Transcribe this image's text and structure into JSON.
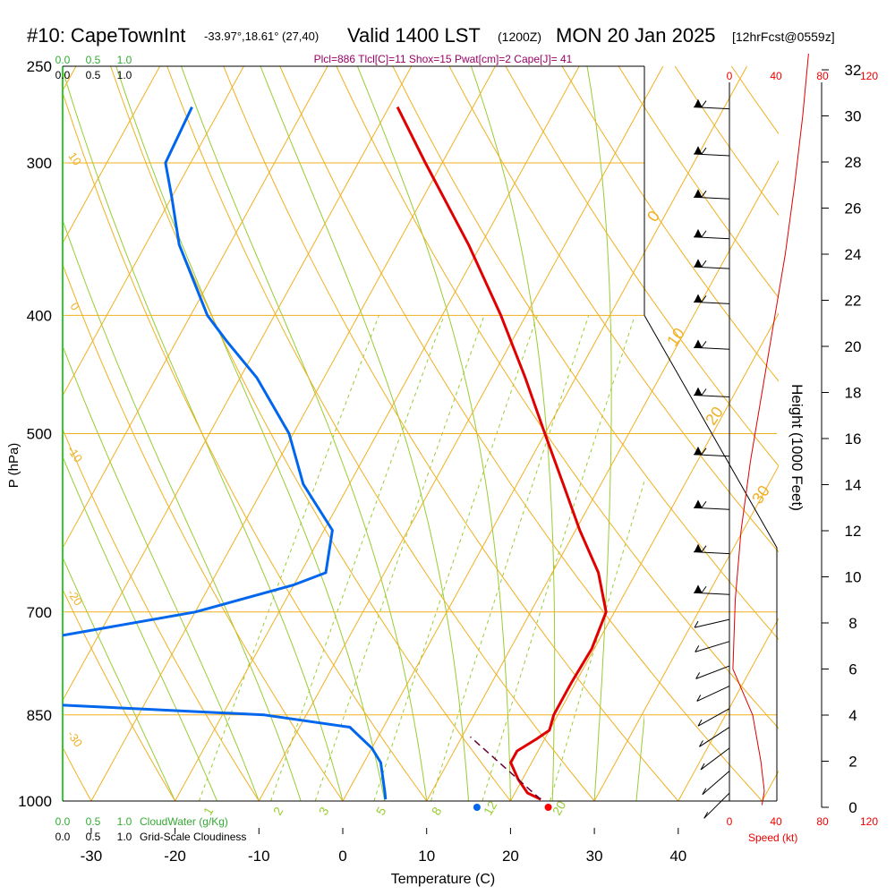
{
  "header": {
    "station": "#10: CapeTownInt",
    "coords": "-33.97°,18.61° (27,40)",
    "valid": "Valid 1400 LST",
    "zulu": "(1200Z)",
    "date": "MON 20 Jan 2025",
    "forecast": "[12hrFcst@0559z]"
  },
  "stats_line": "Plcl=886 Tlcl[C]=11 Shox=15 Pwat[cm]=2 Cape[J]= 41",
  "chart_data": {
    "type": "line",
    "chart_kind": "Skew-T log-P sounding",
    "xlabel": "Temperature (C)",
    "ylabel": "P (hPa)",
    "right_axis_label": "Height (1000 Feet)",
    "xlim": [
      -34,
      36
    ],
    "ylim": [
      1000,
      250
    ],
    "x_ticks": [
      -30,
      -20,
      -10,
      0,
      10,
      20,
      30,
      40
    ],
    "p_ticks": [
      250,
      300,
      400,
      500,
      700,
      850,
      1000
    ],
    "height_ticks": [
      0,
      2,
      4,
      6,
      8,
      10,
      12,
      14,
      16,
      18,
      20,
      22,
      24,
      26,
      28,
      30,
      32
    ],
    "isotherm_labels": [
      "-10",
      "0",
      "10",
      "20",
      "30"
    ],
    "dry_adiabat_labels": [
      "10",
      "0",
      "-10",
      "-20",
      "-30"
    ],
    "mixing_ratio_labels": [
      "1",
      "2",
      "3",
      "5",
      "8",
      "12",
      "20"
    ],
    "cloudwater_scale": {
      "label": "CloudWater (g/Kg)",
      "ticks": [
        "0.0",
        "0.5",
        "1.0"
      ]
    },
    "cloudiness_scale": {
      "label": "Grid-Scale Cloudiness",
      "ticks": [
        "0.0",
        "0.5",
        "1.0"
      ]
    },
    "speed_scale": {
      "label": "Speed (kt)",
      "ticks": [
        "0",
        "40",
        "80",
        "120"
      ]
    },
    "series": [
      {
        "name": "Temperature",
        "color": "#e00000",
        "points": [
          {
            "p": 997,
            "t": 23.5
          },
          {
            "p": 985,
            "t": 21.5
          },
          {
            "p": 960,
            "t": 19.5
          },
          {
            "p": 930,
            "t": 17.5
          },
          {
            "p": 910,
            "t": 17.5
          },
          {
            "p": 890,
            "t": 19.0
          },
          {
            "p": 875,
            "t": 20.0
          },
          {
            "p": 850,
            "t": 19.5
          },
          {
            "p": 800,
            "t": 19.5
          },
          {
            "p": 750,
            "t": 19.7
          },
          {
            "p": 700,
            "t": 19.0
          },
          {
            "p": 650,
            "t": 15.5
          },
          {
            "p": 600,
            "t": 10.5
          },
          {
            "p": 550,
            "t": 5.5
          },
          {
            "p": 500,
            "t": 0.0
          },
          {
            "p": 450,
            "t": -6.0
          },
          {
            "p": 400,
            "t": -13.0
          },
          {
            "p": 350,
            "t": -21.5
          },
          {
            "p": 300,
            "t": -32.0
          },
          {
            "p": 270,
            "t": -39.0
          }
        ]
      },
      {
        "name": "Dewpoint",
        "color": "#0066ee",
        "points": [
          {
            "p": 997,
            "t": 5.0
          },
          {
            "p": 985,
            "t": 4.5
          },
          {
            "p": 930,
            "t": 2.0
          },
          {
            "p": 905,
            "t": 0.0
          },
          {
            "p": 870,
            "t": -4.0
          },
          {
            "p": 850,
            "t": -15.0
          },
          {
            "p": 825,
            "t": -55.0
          },
          {
            "p": 810,
            "t": -52.0
          },
          {
            "p": 795,
            "t": -54.0
          },
          {
            "p": 770,
            "t": -51.0
          },
          {
            "p": 740,
            "t": -48.0
          },
          {
            "p": 700,
            "t": -30.0
          },
          {
            "p": 665,
            "t": -20.0
          },
          {
            "p": 650,
            "t": -17.0
          },
          {
            "p": 600,
            "t": -19.0
          },
          {
            "p": 550,
            "t": -25.5
          },
          {
            "p": 500,
            "t": -30.5
          },
          {
            "p": 450,
            "t": -38.0
          },
          {
            "p": 420,
            "t": -44.0
          },
          {
            "p": 400,
            "t": -48.0
          },
          {
            "p": 350,
            "t": -56.0
          },
          {
            "p": 320,
            "t": -60.0
          },
          {
            "p": 300,
            "t": -63.0
          },
          {
            "p": 270,
            "t": -63.5
          }
        ]
      },
      {
        "name": "Parcel",
        "color": "#660033",
        "points": [
          {
            "p": 997,
            "t": 23.5
          },
          {
            "p": 886,
            "t": 11.0
          }
        ]
      }
    ],
    "surface_markers": [
      {
        "name": "Surface temperature",
        "x": 24.5,
        "color": "#ff0000"
      },
      {
        "name": "Surface dewpoint",
        "x": 16.0,
        "color": "#0066ee"
      }
    ],
    "wind_speed_profile": [
      {
        "height_kft": 0.1,
        "speed_kt": 28
      },
      {
        "height_kft": 0.7,
        "speed_kt": 30
      },
      {
        "height_kft": 2.0,
        "speed_kt": 27
      },
      {
        "height_kft": 4.0,
        "speed_kt": 20
      },
      {
        "height_kft": 6.0,
        "speed_kt": 3
      },
      {
        "height_kft": 9.0,
        "speed_kt": 5
      },
      {
        "height_kft": 12.0,
        "speed_kt": 10
      },
      {
        "height_kft": 15.0,
        "speed_kt": 18
      },
      {
        "height_kft": 18.0,
        "speed_kt": 28
      },
      {
        "height_kft": 21.0,
        "speed_kt": 38
      },
      {
        "height_kft": 24.0,
        "speed_kt": 48
      },
      {
        "height_kft": 27.0,
        "speed_kt": 56
      },
      {
        "height_kft": 30.0,
        "speed_kt": 63
      },
      {
        "height_kft": 32.7,
        "speed_kt": 68
      }
    ],
    "wind_barbs_p": [
      270,
      295,
      320,
      345,
      365,
      390,
      425,
      465,
      520,
      575,
      625,
      675,
      710,
      740,
      775,
      805,
      840,
      870,
      905,
      945,
      985
    ]
  }
}
